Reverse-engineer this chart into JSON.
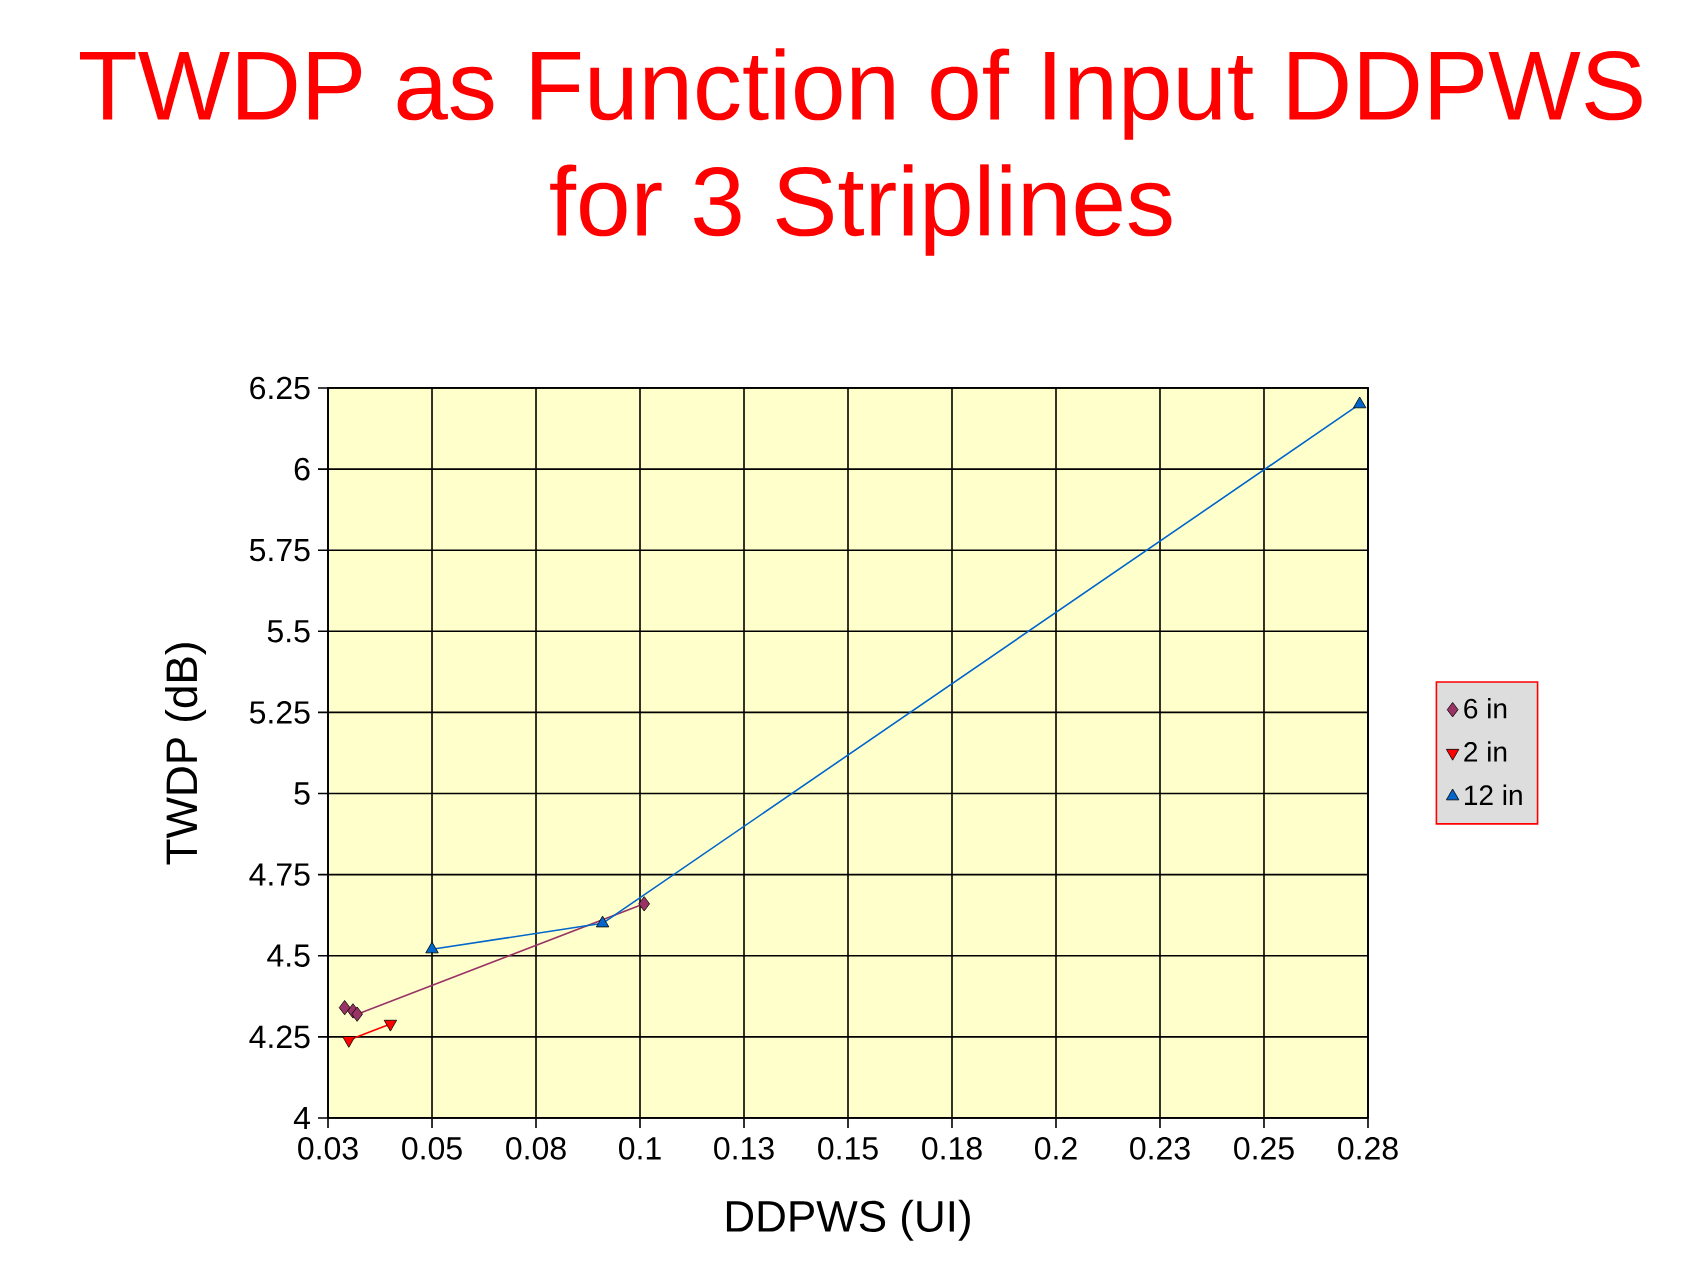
{
  "chart_data": {
    "type": "line",
    "title": "TWDP as Function of Input DDPWS for 3 Striplines",
    "xlabel": "DDPWS (UI)",
    "ylabel": "TWDP (dB)",
    "xlim": [
      0.025,
      0.275
    ],
    "ylim": [
      4,
      6.25
    ],
    "xticks": [
      {
        "value": 0.025,
        "label": "0.03"
      },
      0.05,
      {
        "value": 0.075,
        "label": "0.08"
      },
      0.1,
      {
        "value": 0.125,
        "label": "0.13"
      },
      0.15,
      {
        "value": 0.175,
        "label": "0.18"
      },
      0.2,
      {
        "value": 0.225,
        "label": "0.23"
      },
      0.25,
      {
        "value": 0.275,
        "label": "0.28"
      }
    ],
    "yticks": [
      4,
      4.25,
      4.5,
      4.75,
      5,
      5.25,
      5.5,
      5.75,
      6,
      6.25
    ],
    "grid": true,
    "legend": "right",
    "line_style": "solid",
    "series": [
      {
        "name": "6 in",
        "color": "#993366",
        "marker": "diamond",
        "x": [
          0.029,
          0.031,
          0.032,
          0.101
        ],
        "values": [
          4.34,
          4.33,
          4.32,
          4.66
        ]
      },
      {
        "name": "2 in",
        "color": "#ff0000",
        "marker": "triangle-down",
        "x": [
          0.03,
          0.04
        ],
        "values": [
          4.24,
          4.29
        ]
      },
      {
        "name": "12 in",
        "color": "#0066cc",
        "marker": "triangle",
        "x": [
          0.05,
          0.091,
          0.273
        ],
        "values": [
          4.52,
          4.6,
          6.2
        ]
      }
    ]
  }
}
